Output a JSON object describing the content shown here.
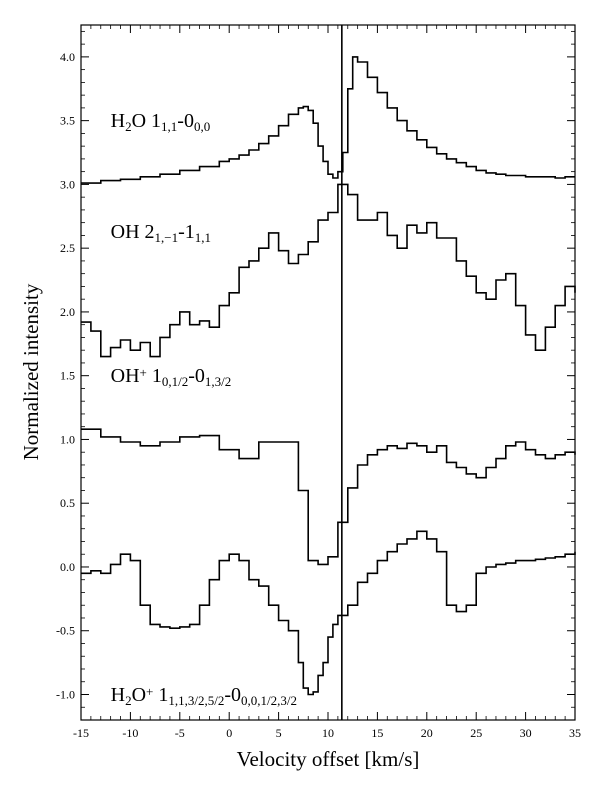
{
  "chart_data": {
    "type": "line",
    "title": "",
    "xlabel": "Velocity offset [km/s]",
    "ylabel": "Normalized intensity",
    "xlim": [
      -15,
      35
    ],
    "ylim": [
      -1.2,
      4.25
    ],
    "xticks": [
      -15,
      -10,
      -5,
      0,
      5,
      10,
      15,
      20,
      25,
      30,
      35
    ],
    "xtick_labels": [
      "-15",
      "-10",
      "-5",
      "0",
      "5",
      "10",
      "15",
      "20",
      "25",
      "30",
      "35"
    ],
    "yticks": [
      -1.0,
      -0.5,
      0.0,
      0.5,
      1.0,
      1.5,
      2.0,
      2.5,
      3.0,
      3.5,
      4.0
    ],
    "ytick_labels": [
      "-1.0",
      "-0.5",
      "0.0",
      "0.5",
      "1.0",
      "1.5",
      "2.0",
      "2.5",
      "3.0",
      "3.5",
      "4.0"
    ],
    "grid": false,
    "vertical_line_x": 11.4,
    "series": [
      {
        "name": "H2O 1_{1,1}-0_{0,0}",
        "label_parts": [
          [
            "H",
            "n"
          ],
          [
            "2",
            "sub"
          ],
          [
            "O 1",
            "n"
          ],
          [
            "1,1",
            "sub"
          ],
          [
            "-0",
            "n"
          ],
          [
            "0,0",
            "sub"
          ]
        ],
        "label_anchor": [
          -12.0,
          3.45
        ],
        "step": true,
        "x": [
          -15,
          -13,
          -11,
          -9,
          -7,
          -5,
          -3,
          -1,
          0,
          1,
          2,
          3,
          4,
          5,
          6,
          7,
          7.5,
          8,
          8.5,
          9,
          9.5,
          10,
          10.5,
          11,
          11.5,
          12,
          12.5,
          13,
          14,
          15,
          16,
          17,
          18,
          19,
          20,
          21,
          22,
          23,
          24,
          25,
          26,
          27,
          28,
          29,
          30,
          31,
          32,
          33,
          34,
          35
        ],
        "y": [
          3.01,
          3.03,
          3.04,
          3.06,
          3.08,
          3.11,
          3.14,
          3.18,
          3.2,
          3.23,
          3.27,
          3.32,
          3.38,
          3.46,
          3.55,
          3.6,
          3.61,
          3.58,
          3.48,
          3.3,
          3.18,
          3.08,
          3.05,
          3.1,
          3.25,
          3.75,
          4.0,
          3.96,
          3.84,
          3.72,
          3.6,
          3.5,
          3.42,
          3.35,
          3.29,
          3.24,
          3.2,
          3.17,
          3.14,
          3.11,
          3.09,
          3.08,
          3.07,
          3.07,
          3.06,
          3.06,
          3.06,
          3.05,
          3.06,
          3.06
        ]
      },
      {
        "name": "OH 2_{1,-1}-1_{1,1}",
        "label_parts": [
          [
            "OH 2",
            "n"
          ],
          [
            "1,−1",
            "sub"
          ],
          [
            "-1",
            "n"
          ],
          [
            "1,1",
            "sub"
          ]
        ],
        "label_anchor": [
          -12.0,
          2.58
        ],
        "step": true,
        "x": [
          -15,
          -14,
          -13,
          -12,
          -11,
          -10,
          -9,
          -8,
          -7,
          -6,
          -5,
          -4,
          -3,
          -2,
          -1,
          0,
          1,
          2,
          3,
          4,
          5,
          6,
          7,
          8,
          9,
          10,
          11,
          12,
          13,
          14,
          15,
          16,
          17,
          18,
          19,
          20,
          21,
          22,
          23,
          24,
          25,
          26,
          27,
          28,
          29,
          30,
          31,
          32,
          33,
          34,
          35
        ],
        "y": [
          1.92,
          1.85,
          1.65,
          1.72,
          1.78,
          1.7,
          1.76,
          1.65,
          1.8,
          1.9,
          2.0,
          1.9,
          1.93,
          1.88,
          2.05,
          2.15,
          2.35,
          2.4,
          2.5,
          2.62,
          2.48,
          2.38,
          2.45,
          2.55,
          2.72,
          2.78,
          3.0,
          2.92,
          2.72,
          2.72,
          2.78,
          2.6,
          2.5,
          2.68,
          2.62,
          2.7,
          2.58,
          2.58,
          2.4,
          2.28,
          2.15,
          2.1,
          2.25,
          2.3,
          2.05,
          1.82,
          1.7,
          1.88,
          2.05,
          2.2,
          2.15
        ]
      },
      {
        "name": "OH+ 1_{0,1/2}-0_{1,3/2}",
        "label_parts": [
          [
            "OH",
            "n"
          ],
          [
            "+",
            "sup"
          ],
          [
            " 1",
            "n"
          ],
          [
            "0,1/2",
            "sub"
          ],
          [
            "-0",
            "n"
          ],
          [
            "1,3/2",
            "sub"
          ]
        ],
        "label_anchor": [
          -12.0,
          1.45
        ],
        "step": true,
        "x": [
          -15,
          -13,
          -11,
          -9,
          -7,
          -5,
          -3,
          -1,
          1,
          3,
          5,
          7,
          8,
          9,
          10,
          11,
          12,
          13,
          14,
          15,
          16,
          17,
          18,
          19,
          20,
          21,
          22,
          23,
          24,
          25,
          26,
          27,
          28,
          29,
          30,
          31,
          32,
          33,
          34,
          35
        ],
        "y": [
          1.08,
          1.02,
          0.98,
          0.95,
          0.98,
          1.02,
          1.03,
          0.92,
          0.85,
          0.98,
          0.98,
          0.6,
          0.05,
          0.02,
          0.08,
          0.35,
          0.62,
          0.8,
          0.88,
          0.92,
          0.95,
          0.93,
          0.97,
          0.95,
          0.9,
          0.95,
          0.82,
          0.78,
          0.73,
          0.7,
          0.78,
          0.85,
          0.95,
          0.98,
          0.92,
          0.88,
          0.85,
          0.88,
          0.9,
          0.88
        ]
      },
      {
        "name": "H2O+ 1_{1,1,3/2,5/2}-0_{0,0,1/2,3/2}",
        "label_parts": [
          [
            "H",
            "n"
          ],
          [
            "2",
            "sub"
          ],
          [
            "O",
            "n"
          ],
          [
            "+",
            "sup"
          ],
          [
            " 1",
            "n"
          ],
          [
            "1,1,3/2,5/2",
            "sub"
          ],
          [
            "-0",
            "n"
          ],
          [
            "0,0,1/2,3/2",
            "sub"
          ]
        ],
        "label_anchor": [
          -12.0,
          -1.05
        ],
        "step": true,
        "x": [
          -15,
          -14,
          -13,
          -12,
          -11,
          -10,
          -9,
          -8,
          -7,
          -6,
          -5,
          -4,
          -3,
          -2,
          -1,
          0,
          1,
          2,
          3,
          4,
          5,
          6,
          7,
          7.5,
          8,
          8.5,
          9,
          9.5,
          10,
          10.5,
          11,
          12,
          13,
          14,
          15,
          16,
          17,
          18,
          19,
          20,
          21,
          22,
          23,
          24,
          25,
          26,
          27,
          28,
          29,
          30,
          31,
          32,
          33,
          34,
          35
        ],
        "y": [
          -0.05,
          -0.03,
          -0.05,
          0.02,
          0.1,
          0.05,
          -0.3,
          -0.45,
          -0.47,
          -0.48,
          -0.47,
          -0.45,
          -0.3,
          -0.1,
          0.05,
          0.1,
          0.05,
          -0.1,
          -0.15,
          -0.3,
          -0.42,
          -0.5,
          -0.75,
          -0.95,
          -1.0,
          -0.98,
          -0.85,
          -0.75,
          -0.55,
          -0.45,
          -0.38,
          -0.3,
          -0.12,
          -0.05,
          0.05,
          0.12,
          0.18,
          0.22,
          0.28,
          0.22,
          0.12,
          -0.3,
          -0.35,
          -0.3,
          -0.05,
          0.0,
          0.02,
          0.03,
          0.05,
          0.05,
          0.06,
          0.07,
          0.08,
          0.1,
          0.12
        ]
      }
    ]
  }
}
